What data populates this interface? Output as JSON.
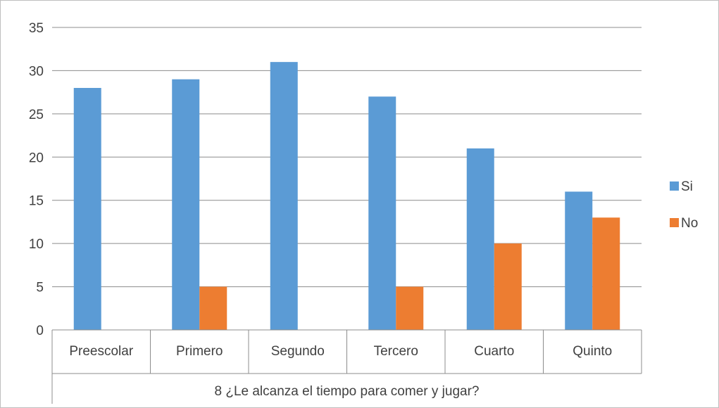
{
  "chart_data": {
    "type": "bar",
    "categories": [
      "Preescolar",
      "Primero",
      "Segundo",
      "Tercero",
      "Cuarto",
      "Quinto"
    ],
    "group_label": "8 ¿Le alcanza el tiempo para comer y jugar?",
    "series": [
      {
        "name": "Si",
        "color": "#5b9bd5",
        "values": [
          28,
          29,
          31,
          27,
          21,
          16
        ]
      },
      {
        "name": "No",
        "color": "#ed7d31",
        "values": [
          0,
          5,
          0,
          5,
          10,
          13
        ]
      }
    ],
    "ylim": [
      0,
      35
    ],
    "yticks": [
      "0",
      "5",
      "10",
      "15",
      "20",
      "25",
      "30",
      "35"
    ],
    "grid": true,
    "legend_position": "right"
  }
}
